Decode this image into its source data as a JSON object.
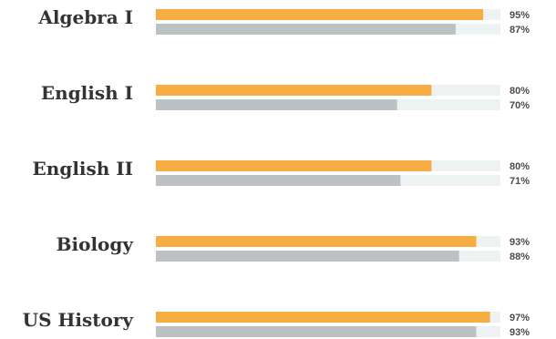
{
  "colors": {
    "primary": "#f7ad41",
    "secondary": "#bcc2c4",
    "track": "#edf3f3",
    "label_text": "#333333",
    "pct_text": "#4a4a4a"
  },
  "chart_data": {
    "type": "bar",
    "orientation": "horizontal",
    "grid": false,
    "legend": "none",
    "xlim": [
      0,
      100
    ],
    "value_suffix": "%",
    "categories": [
      "Algebra I",
      "English I",
      "English II",
      "Biology",
      "US History"
    ],
    "series": [
      {
        "color": "#f7ad41",
        "values": [
          95,
          80,
          80,
          93,
          97
        ]
      },
      {
        "color": "#bcc2c4",
        "values": [
          87,
          70,
          71,
          88,
          93
        ]
      }
    ],
    "value_labels": [
      [
        "95%",
        "87%"
      ],
      [
        "80%",
        "70%"
      ],
      [
        "80%",
        "71%"
      ],
      [
        "93%",
        "88%"
      ],
      [
        "97%",
        "93%"
      ]
    ]
  }
}
